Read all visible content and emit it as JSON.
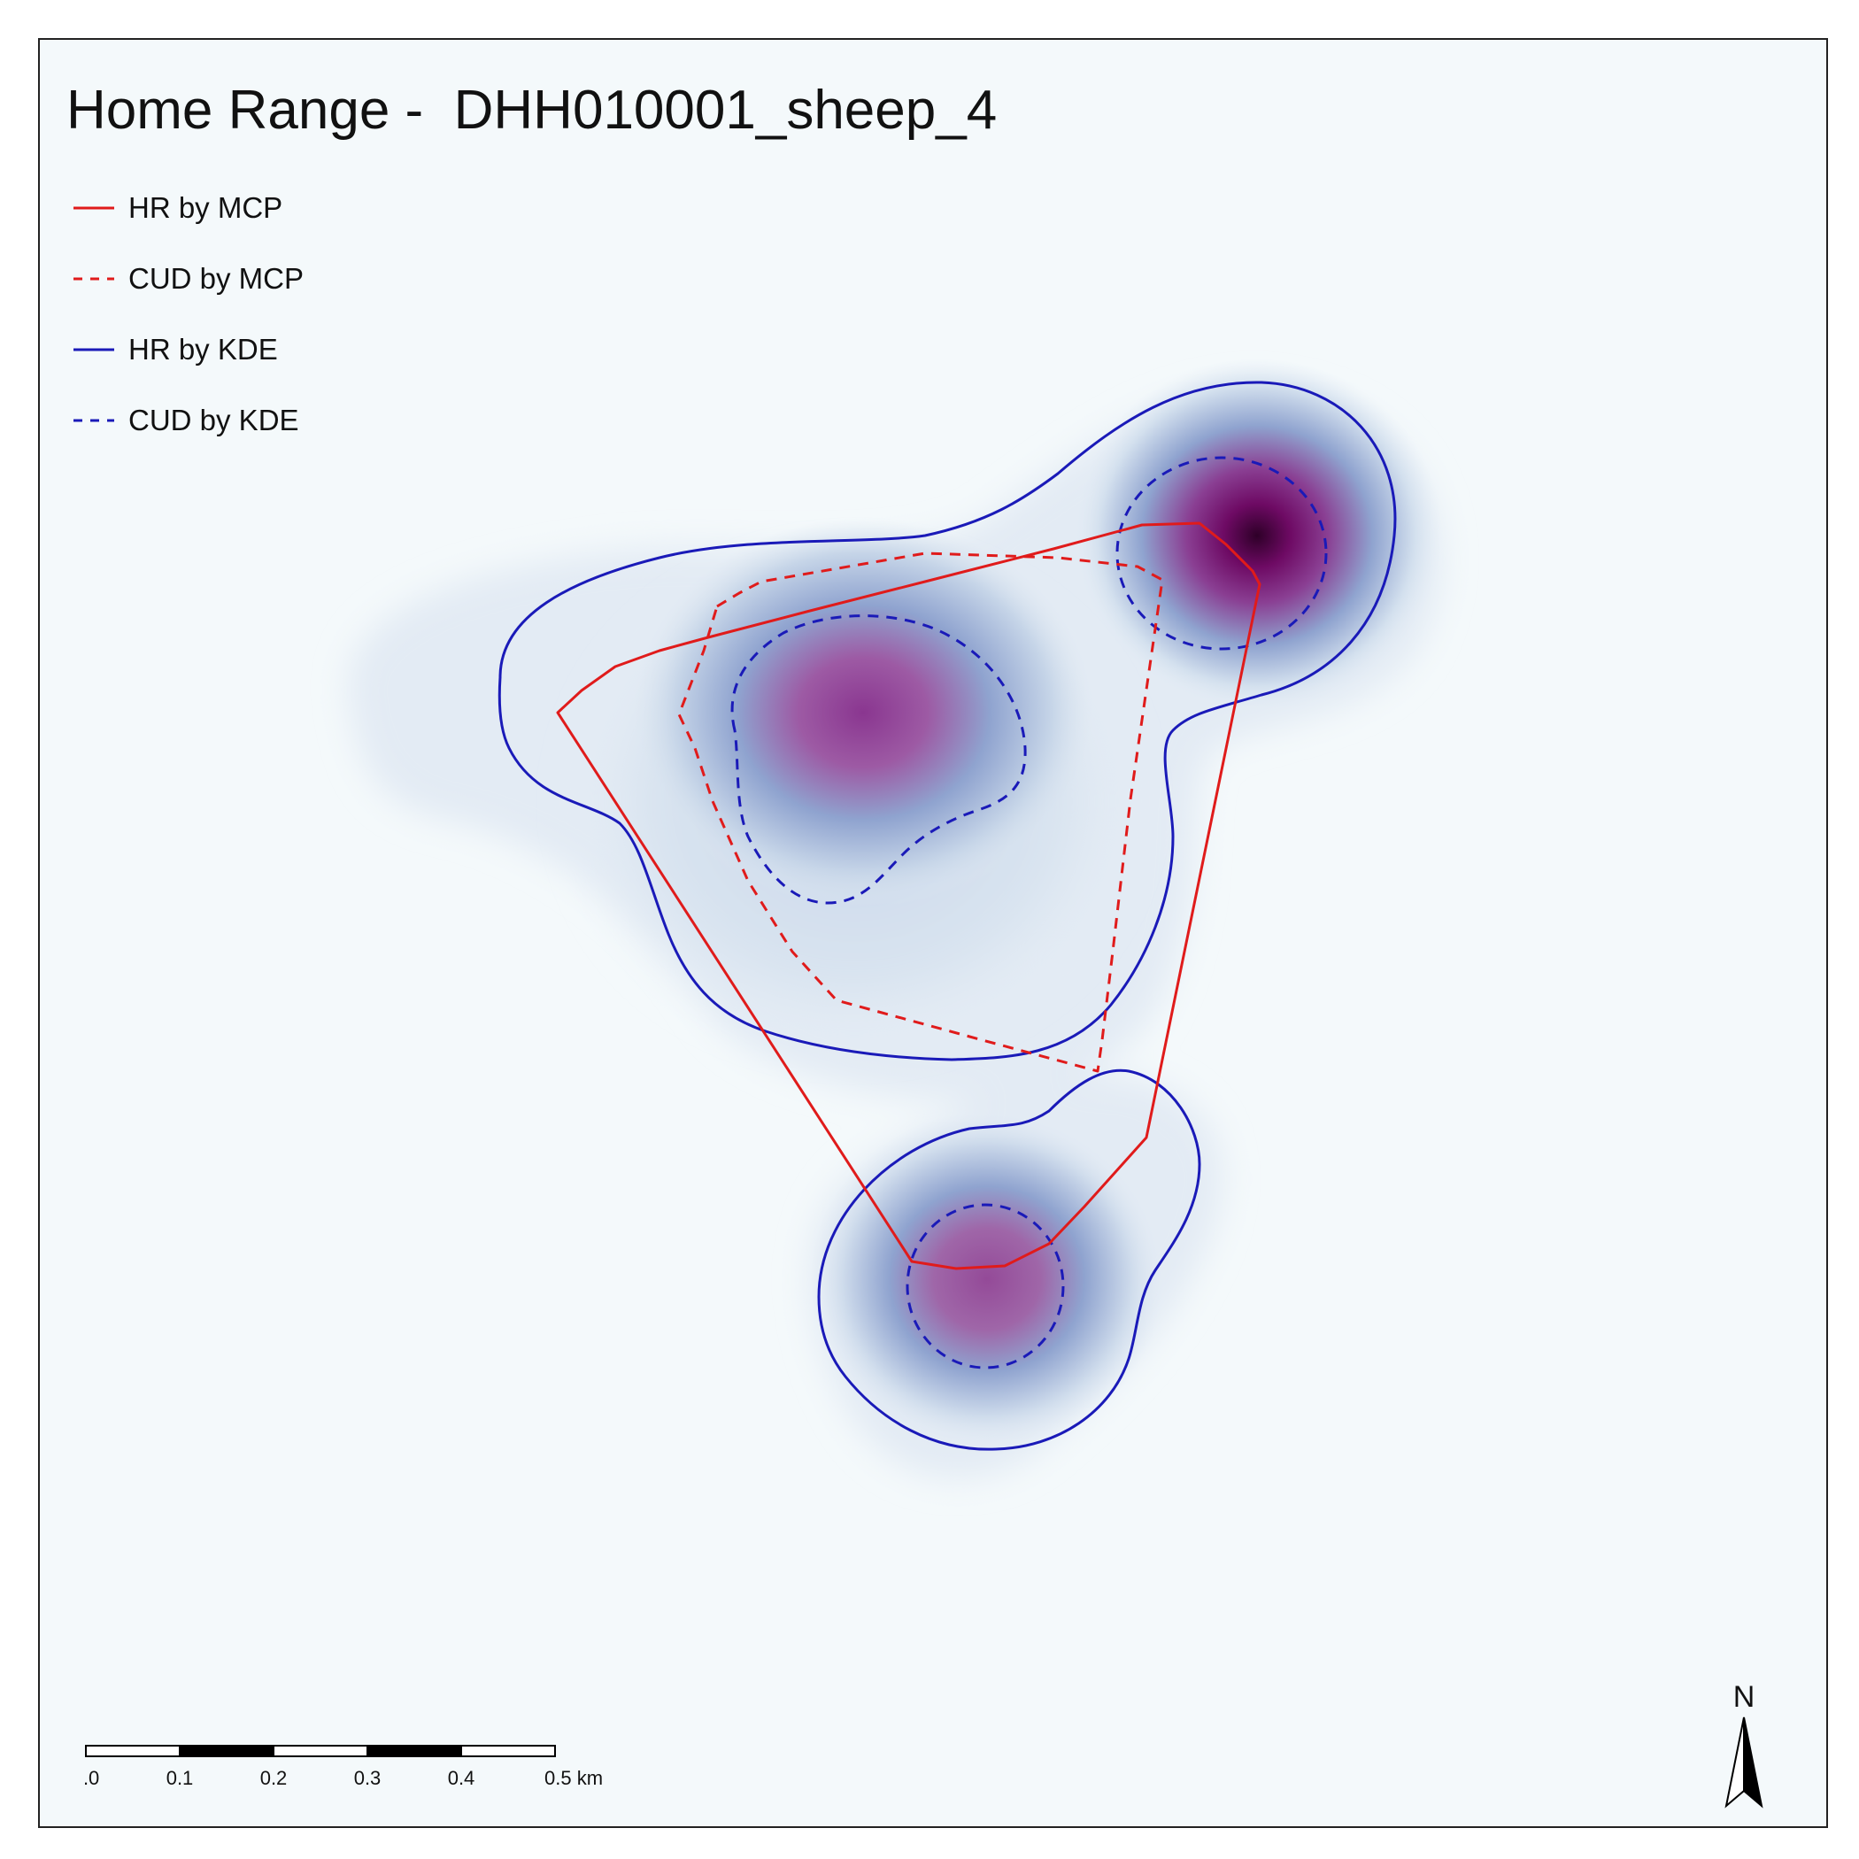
{
  "title": "Home Range -  DHH010001_sheep_4",
  "legend": [
    {
      "label": "HR by MCP",
      "color": "#e01b1b",
      "dash": "solid"
    },
    {
      "label": "CUD by MCP",
      "color": "#e01b1b",
      "dash": "dashed"
    },
    {
      "label": "HR by KDE",
      "color": "#1a1ab8",
      "dash": "solid"
    },
    {
      "label": "CUD by KDE",
      "color": "#1a1ab8",
      "dash": "dashed"
    }
  ],
  "scalebar": {
    "ticks": [
      "0.0",
      "0.1",
      "0.2",
      "0.3",
      "0.4",
      "0.5 km"
    ]
  },
  "north_arrow": {
    "label": "N"
  },
  "colors": {
    "background": "#f4f9fb",
    "mcp": "#e01b1b",
    "kde": "#1a1ab8",
    "density_low": "#dbe6f0",
    "density_mid": "#8c9fcc",
    "density_high": "#8b2a8f",
    "density_peak": "#3d0030"
  }
}
